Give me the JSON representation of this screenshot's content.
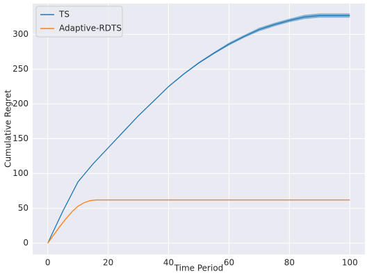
{
  "chart_data": {
    "type": "line",
    "xlabel": "Time Period",
    "ylabel": "Cumulative Regret",
    "xlim": [
      -5,
      105
    ],
    "ylim": [
      -16.4,
      344.4
    ],
    "xticks": [
      0,
      20,
      40,
      60,
      80,
      100
    ],
    "yticks": [
      0,
      50,
      100,
      150,
      200,
      250,
      300
    ],
    "grid": true,
    "legend": "upper-left",
    "series": [
      {
        "name": "TS",
        "color": "#1f77b4",
        "x": [
          0,
          5,
          10,
          15,
          20,
          25,
          30,
          35,
          40,
          45,
          50,
          55,
          60,
          65,
          70,
          75,
          80,
          85,
          90,
          95,
          100
        ],
        "values": [
          0,
          46,
          88,
          114,
          137,
          160,
          183,
          204,
          225,
          243,
          259,
          273,
          286,
          297,
          307,
          314,
          320,
          325,
          327,
          327,
          327
        ],
        "ci": [
          0,
          0.5,
          0.5,
          0.5,
          0.5,
          0.5,
          0.5,
          0.5,
          0.8,
          1,
          1.2,
          1.5,
          2,
          2,
          2.5,
          2.5,
          2.5,
          3,
          3,
          3,
          3
        ]
      },
      {
        "name": "Adaptive-RDTS",
        "color": "#ff7f0e",
        "x": [
          0,
          2,
          4,
          6,
          8,
          10,
          12,
          14,
          16,
          20,
          40,
          60,
          80,
          100
        ],
        "values": [
          0,
          12,
          24,
          35,
          45,
          53,
          58,
          61,
          62,
          62,
          62,
          62,
          62,
          62
        ]
      }
    ]
  }
}
